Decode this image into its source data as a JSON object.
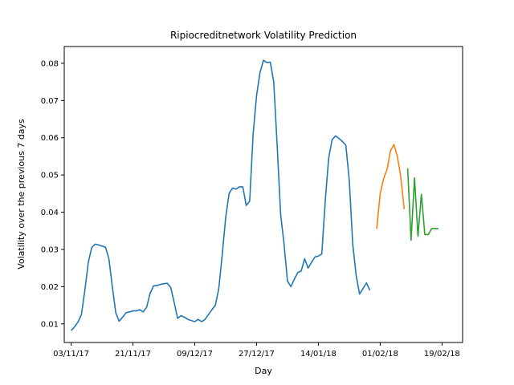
{
  "chart_data": {
    "type": "line",
    "title": "Ripiocreditnetwork Volatility Prediction",
    "xlabel": "Day",
    "ylabel": "Volatility over the previous 7 days",
    "x_type": "date",
    "xlim": [
      "2017-11-01",
      "2018-02-25"
    ],
    "ylim": [
      0.005,
      0.0845
    ],
    "x_ticks": [
      {
        "date": "2017-11-03",
        "label": "03/11/17"
      },
      {
        "date": "2017-11-21",
        "label": "21/11/17"
      },
      {
        "date": "2017-12-09",
        "label": "09/12/17"
      },
      {
        "date": "2017-12-27",
        "label": "27/12/17"
      },
      {
        "date": "2018-01-14",
        "label": "14/01/18"
      },
      {
        "date": "2018-02-01",
        "label": "01/02/18"
      },
      {
        "date": "2018-02-19",
        "label": "19/02/18"
      }
    ],
    "y_ticks": [
      0.01,
      0.02,
      0.03,
      0.04,
      0.05,
      0.06,
      0.07,
      0.08
    ],
    "grid": false,
    "series": [
      {
        "color": "#1f77b4",
        "points": [
          [
            "2017-11-03",
            0.0082
          ],
          [
            "2017-11-04",
            0.0092
          ],
          [
            "2017-11-05",
            0.0105
          ],
          [
            "2017-11-06",
            0.0125
          ],
          [
            "2017-11-07",
            0.019
          ],
          [
            "2017-11-08",
            0.0265
          ],
          [
            "2017-11-09",
            0.0305
          ],
          [
            "2017-11-10",
            0.0314
          ],
          [
            "2017-11-11",
            0.0312
          ],
          [
            "2017-11-12",
            0.0309
          ],
          [
            "2017-11-13",
            0.0306
          ],
          [
            "2017-11-14",
            0.0275
          ],
          [
            "2017-11-15",
            0.02
          ],
          [
            "2017-11-16",
            0.013
          ],
          [
            "2017-11-17",
            0.0107
          ],
          [
            "2017-11-18",
            0.0118
          ],
          [
            "2017-11-19",
            0.013
          ],
          [
            "2017-11-20",
            0.0132
          ],
          [
            "2017-11-21",
            0.0135
          ],
          [
            "2017-11-22",
            0.0135
          ],
          [
            "2017-11-23",
            0.0138
          ],
          [
            "2017-11-24",
            0.0132
          ],
          [
            "2017-11-25",
            0.0145
          ],
          [
            "2017-11-26",
            0.0182
          ],
          [
            "2017-11-27",
            0.0202
          ],
          [
            "2017-11-28",
            0.0203
          ],
          [
            "2017-11-29",
            0.0206
          ],
          [
            "2017-11-30",
            0.0208
          ],
          [
            "2017-12-01",
            0.0209
          ],
          [
            "2017-12-02",
            0.0198
          ],
          [
            "2017-12-03",
            0.0158
          ],
          [
            "2017-12-04",
            0.0115
          ],
          [
            "2017-12-05",
            0.0122
          ],
          [
            "2017-12-06",
            0.0118
          ],
          [
            "2017-12-07",
            0.0112
          ],
          [
            "2017-12-08",
            0.0109
          ],
          [
            "2017-12-09",
            0.0106
          ],
          [
            "2017-12-10",
            0.0112
          ],
          [
            "2017-12-11",
            0.0106
          ],
          [
            "2017-12-12",
            0.0112
          ],
          [
            "2017-12-13",
            0.0125
          ],
          [
            "2017-12-14",
            0.0138
          ],
          [
            "2017-12-15",
            0.015
          ],
          [
            "2017-12-16",
            0.0195
          ],
          [
            "2017-12-17",
            0.0285
          ],
          [
            "2017-12-18",
            0.0385
          ],
          [
            "2017-12-19",
            0.045
          ],
          [
            "2017-12-20",
            0.0465
          ],
          [
            "2017-12-21",
            0.0462
          ],
          [
            "2017-12-22",
            0.0468
          ],
          [
            "2017-12-23",
            0.0468
          ],
          [
            "2017-12-24",
            0.0418
          ],
          [
            "2017-12-25",
            0.043
          ],
          [
            "2017-12-26",
            0.061
          ],
          [
            "2017-12-27",
            0.0713
          ],
          [
            "2017-12-28",
            0.0775
          ],
          [
            "2017-12-29",
            0.0808
          ],
          [
            "2017-12-30",
            0.0802
          ],
          [
            "2017-12-31",
            0.0803
          ],
          [
            "2018-01-01",
            0.075
          ],
          [
            "2018-01-02",
            0.058
          ],
          [
            "2018-01-03",
            0.0395
          ],
          [
            "2018-01-04",
            0.0315
          ],
          [
            "2018-01-05",
            0.0215
          ],
          [
            "2018-01-06",
            0.02
          ],
          [
            "2018-01-07",
            0.022
          ],
          [
            "2018-01-08",
            0.0238
          ],
          [
            "2018-01-09",
            0.0242
          ],
          [
            "2018-01-10",
            0.0275
          ],
          [
            "2018-01-11",
            0.025
          ],
          [
            "2018-01-12",
            0.0265
          ],
          [
            "2018-01-13",
            0.028
          ],
          [
            "2018-01-14",
            0.0282
          ],
          [
            "2018-01-15",
            0.0288
          ],
          [
            "2018-01-16",
            0.043
          ],
          [
            "2018-01-17",
            0.0545
          ],
          [
            "2018-01-18",
            0.0595
          ],
          [
            "2018-01-19",
            0.0605
          ],
          [
            "2018-01-20",
            0.0598
          ],
          [
            "2018-01-21",
            0.059
          ],
          [
            "2018-01-22",
            0.058
          ],
          [
            "2018-01-23",
            0.0485
          ],
          [
            "2018-01-24",
            0.0315
          ],
          [
            "2018-01-25",
            0.023
          ],
          [
            "2018-01-26",
            0.018
          ],
          [
            "2018-01-27",
            0.0195
          ],
          [
            "2018-01-28",
            0.021
          ],
          [
            "2018-01-29",
            0.019
          ]
        ]
      },
      {
        "color": "#ff7f0e",
        "points": [
          [
            "2018-01-31",
            0.0355
          ],
          [
            "2018-02-01",
            0.045
          ],
          [
            "2018-02-02",
            0.049
          ],
          [
            "2018-02-03",
            0.0515
          ],
          [
            "2018-02-04",
            0.0565
          ],
          [
            "2018-02-05",
            0.0582
          ],
          [
            "2018-02-06",
            0.055
          ],
          [
            "2018-02-07",
            0.0495
          ],
          [
            "2018-02-08",
            0.0408
          ]
        ]
      },
      {
        "color": "#2ca02c",
        "points": [
          [
            "2018-02-09",
            0.0518
          ],
          [
            "2018-02-10",
            0.0325
          ],
          [
            "2018-02-11",
            0.0492
          ],
          [
            "2018-02-12",
            0.0335
          ],
          [
            "2018-02-13",
            0.0448
          ],
          [
            "2018-02-14",
            0.034
          ],
          [
            "2018-02-15",
            0.034
          ],
          [
            "2018-02-16",
            0.0356
          ],
          [
            "2018-02-17",
            0.0356
          ],
          [
            "2018-02-18",
            0.0356
          ]
        ]
      }
    ]
  }
}
